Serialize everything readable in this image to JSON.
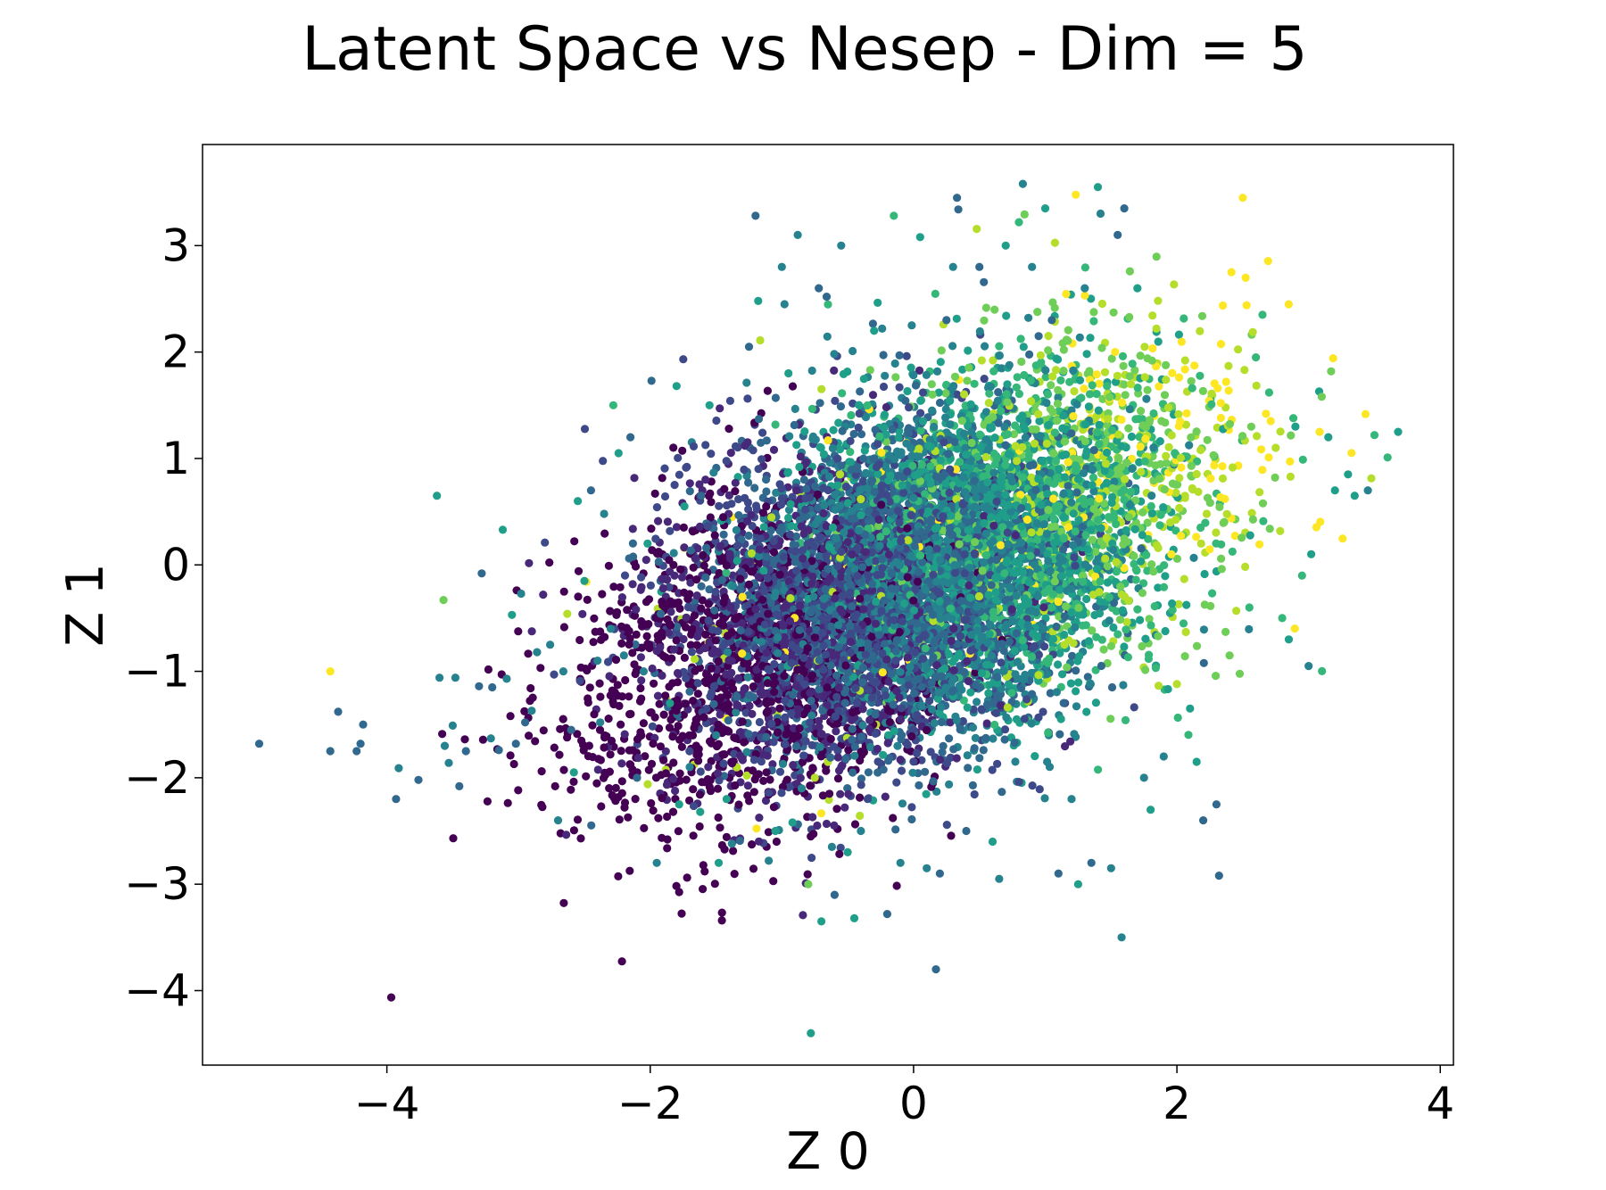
{
  "chart_data": {
    "type": "scatter",
    "title": "Latent Space vs Nesep - Dim = 5",
    "xlabel": "Z 0",
    "ylabel": "Z 1",
    "xlim": [
      -5.4,
      4.1
    ],
    "ylim": [
      -4.7,
      3.95
    ],
    "xticks": [
      -4,
      -2,
      0,
      2,
      4
    ],
    "yticks": [
      -4,
      -3,
      -2,
      -1,
      0,
      1,
      2,
      3
    ],
    "xtick_labels": [
      "−4",
      "−2",
      "0",
      "2",
      "4"
    ],
    "ytick_labels": [
      "−4",
      "−3",
      "−2",
      "−1",
      "0",
      "1",
      "2",
      "3"
    ],
    "grid": false,
    "colormap": "viridis",
    "colors": {
      "viridis": [
        "#440154",
        "#482878",
        "#3e4989",
        "#31688e",
        "#26828e",
        "#1f9e89",
        "#35b779",
        "#6ece58",
        "#b5de2b",
        "#fde725"
      ],
      "frame": "#000000",
      "background": "#ffffff"
    },
    "points": [
      [
        -4.97,
        -1.68,
        0.3
      ],
      [
        -4.43,
        -1.75,
        0.3
      ],
      [
        -4.43,
        -1.0,
        1.0
      ],
      [
        -4.37,
        -1.38,
        0.35
      ],
      [
        -4.23,
        -1.75,
        0.3
      ],
      [
        -4.2,
        -1.68,
        0.3
      ],
      [
        -4.18,
        -1.5,
        0.3
      ],
      [
        -3.93,
        -2.2,
        0.3
      ],
      [
        -3.91,
        -1.91,
        0.4
      ],
      [
        -3.76,
        -2.02,
        0.3
      ],
      [
        -3.62,
        0.65,
        0.5
      ],
      [
        -3.6,
        -1.06,
        0.4
      ],
      [
        -3.57,
        -0.33,
        0.8
      ],
      [
        -3.56,
        -1.7,
        0.4
      ],
      [
        -3.53,
        -1.86,
        0.4
      ],
      [
        -3.5,
        -1.51,
        0.4
      ],
      [
        -3.48,
        -1.06,
        0.4
      ],
      [
        -3.45,
        -2.08,
        0.3
      ],
      [
        -3.4,
        -1.75,
        0.35
      ],
      [
        -3.3,
        -1.14,
        0.3
      ],
      [
        -3.28,
        -0.08,
        0.35
      ],
      [
        -3.21,
        -1.63,
        0.4
      ],
      [
        -3.2,
        -1.15,
        0.3
      ],
      [
        -3.15,
        -1.74,
        0.35
      ],
      [
        -3.12,
        0.33,
        0.55
      ],
      [
        -3.09,
        -1.07,
        0.4
      ],
      [
        -3.05,
        -0.47,
        0.55
      ],
      [
        -3.02,
        -1.68,
        0.3
      ],
      [
        -2.98,
        -0.27,
        0.4
      ],
      [
        -2.95,
        -1.48,
        0.3
      ],
      [
        -2.9,
        -1.37,
        0.4
      ],
      [
        -2.86,
        -0.82,
        0.4
      ],
      [
        -2.8,
        0.21,
        0.2
      ],
      [
        -2.76,
        -0.75,
        0.45
      ],
      [
        -2.73,
        -1.03,
        0.25
      ],
      [
        -2.7,
        -2.4,
        0.4
      ],
      [
        -2.66,
        -1.0,
        0.4
      ],
      [
        -2.63,
        -0.46,
        0.9
      ],
      [
        -2.6,
        -1.55,
        0.35
      ],
      [
        -2.58,
        -1.95,
        0.5
      ],
      [
        -2.55,
        0.6,
        0.5
      ],
      [
        -2.5,
        -0.15,
        0.5
      ],
      [
        -2.45,
        0.7,
        0.35
      ],
      [
        -2.4,
        -0.9,
        0.4
      ],
      [
        -2.38,
        -1.48,
        0.4
      ],
      [
        -2.35,
        0.48,
        0.4
      ],
      [
        -2.3,
        -0.6,
        0.45
      ],
      [
        -2.28,
        1.5,
        0.7
      ],
      [
        -2.24,
        1.05,
        0.5
      ],
      [
        -2.2,
        -0.85,
        0.45
      ],
      [
        -2.15,
        1.2,
        0.3
      ],
      [
        -2.1,
        -2.0,
        0.3
      ],
      [
        -2.05,
        -1.0,
        0.45
      ],
      [
        -2.02,
        0.2,
        0.55
      ],
      [
        -1.99,
        1.73,
        0.3
      ],
      [
        -1.95,
        -2.8,
        0.4
      ],
      [
        -1.92,
        -0.46,
        0.3
      ],
      [
        -1.85,
        -1.3,
        0.5
      ],
      [
        -1.8,
        1.68,
        0.6
      ],
      [
        -1.78,
        -2.25,
        0.5
      ],
      [
        -1.74,
        0.55,
        0.5
      ],
      [
        -1.7,
        -1.9,
        0.4
      ],
      [
        -1.62,
        -2.32,
        0.55
      ],
      [
        -1.55,
        1.5,
        0.55
      ],
      [
        -1.5,
        -1.6,
        0.4
      ],
      [
        -1.48,
        -2.8,
        0.55
      ],
      [
        -1.42,
        -2.2,
        0.6
      ],
      [
        -1.38,
        -2.62,
        0.4
      ],
      [
        -1.3,
        -0.3,
        0.95
      ],
      [
        -1.25,
        2.05,
        0.3
      ],
      [
        -1.2,
        3.28,
        0.35
      ],
      [
        -1.18,
        2.48,
        0.5
      ],
      [
        -1.1,
        -2.78,
        0.4
      ],
      [
        -1.05,
        -2.5,
        0.5
      ],
      [
        -1.0,
        2.8,
        0.45
      ],
      [
        -0.98,
        2.45,
        0.4
      ],
      [
        -0.95,
        1.8,
        0.5
      ],
      [
        -0.92,
        -2.42,
        0.6
      ],
      [
        -0.88,
        3.1,
        0.4
      ],
      [
        -0.85,
        -2.1,
        0.4
      ],
      [
        -0.8,
        -3.0,
        0.8
      ],
      [
        -0.78,
        -4.4,
        0.55
      ],
      [
        -0.75,
        -2.0,
        0.9
      ],
      [
        -0.72,
        2.6,
        0.3
      ],
      [
        -0.7,
        -3.35,
        0.5
      ],
      [
        -0.66,
        2.52,
        0.3
      ],
      [
        -0.62,
        -2.65,
        0.4
      ],
      [
        -0.6,
        -3.1,
        0.35
      ],
      [
        -0.55,
        3.0,
        0.4
      ],
      [
        -0.5,
        -2.7,
        0.5
      ],
      [
        -0.45,
        -3.32,
        0.55
      ],
      [
        -0.4,
        -2.5,
        0.4
      ],
      [
        -0.3,
        2.2,
        0.6
      ],
      [
        -0.2,
        -3.28,
        0.35
      ],
      [
        -0.15,
        3.28,
        0.65
      ],
      [
        -0.1,
        -2.8,
        0.4
      ],
      [
        0.05,
        3.08,
        0.5
      ],
      [
        0.1,
        -2.85,
        0.4
      ],
      [
        0.17,
        -3.8,
        0.3
      ],
      [
        0.2,
        -2.9,
        0.3
      ],
      [
        0.25,
        2.3,
        0.35
      ],
      [
        0.3,
        2.8,
        0.4
      ],
      [
        0.33,
        3.45,
        0.3
      ],
      [
        0.34,
        3.34,
        0.35
      ],
      [
        0.4,
        -2.5,
        0.3
      ],
      [
        0.5,
        2.8,
        0.35
      ],
      [
        0.6,
        -2.6,
        0.5
      ],
      [
        0.65,
        -2.95,
        0.4
      ],
      [
        0.7,
        3.0,
        0.5
      ],
      [
        0.8,
        3.22,
        0.7
      ],
      [
        0.83,
        3.58,
        0.4
      ],
      [
        0.9,
        2.8,
        0.4
      ],
      [
        0.95,
        2.15,
        0.3
      ],
      [
        1.0,
        3.35,
        0.6
      ],
      [
        1.05,
        2.3,
        0.3
      ],
      [
        1.1,
        -2.9,
        0.35
      ],
      [
        1.2,
        -2.2,
        0.45
      ],
      [
        1.25,
        -3.0,
        0.6
      ],
      [
        1.3,
        2.6,
        0.4
      ],
      [
        1.35,
        -2.8,
        0.35
      ],
      [
        1.4,
        3.55,
        0.5
      ],
      [
        1.42,
        3.3,
        0.4
      ],
      [
        1.5,
        -2.85,
        0.45
      ],
      [
        1.55,
        3.1,
        0.3
      ],
      [
        1.58,
        -3.5,
        0.45
      ],
      [
        1.6,
        3.35,
        0.35
      ],
      [
        1.7,
        2.6,
        0.6
      ],
      [
        1.75,
        -2.0,
        0.4
      ],
      [
        1.8,
        -2.3,
        0.5
      ],
      [
        1.9,
        -1.8,
        0.45
      ],
      [
        2.0,
        -1.12,
        0.9
      ],
      [
        2.05,
        -0.55,
        0.7
      ],
      [
        2.1,
        -1.35,
        0.5
      ],
      [
        2.15,
        -1.85,
        0.5
      ],
      [
        2.2,
        -2.4,
        0.35
      ],
      [
        2.3,
        -2.25,
        0.3
      ],
      [
        2.32,
        -2.92,
        0.3
      ],
      [
        2.4,
        -0.85,
        0.8
      ],
      [
        2.5,
        3.45,
        1.0
      ],
      [
        2.55,
        -0.4,
        0.7
      ],
      [
        2.6,
        1.95,
        0.7
      ],
      [
        2.65,
        2.35,
        0.7
      ],
      [
        2.7,
        1.62,
        0.65
      ],
      [
        2.75,
        1.1,
        0.85
      ],
      [
        2.8,
        -0.5,
        0.7
      ],
      [
        2.85,
        -0.7,
        0.5
      ],
      [
        2.9,
        1.3,
        0.5
      ],
      [
        2.95,
        -0.1,
        0.7
      ],
      [
        3.0,
        -0.95,
        0.45
      ],
      [
        3.02,
        0.1,
        0.55
      ],
      [
        3.08,
        1.63,
        0.6
      ],
      [
        3.1,
        1.58,
        0.75
      ],
      [
        3.15,
        1.2,
        0.5
      ],
      [
        3.2,
        0.7,
        0.6
      ],
      [
        3.3,
        0.85,
        0.5
      ],
      [
        3.35,
        0.65,
        0.5
      ],
      [
        3.45,
        0.7,
        0.45
      ],
      [
        3.5,
        1.22,
        0.65
      ],
      [
        3.6,
        1.01,
        0.65
      ],
      [
        3.68,
        1.25,
        0.6
      ]
    ]
  }
}
